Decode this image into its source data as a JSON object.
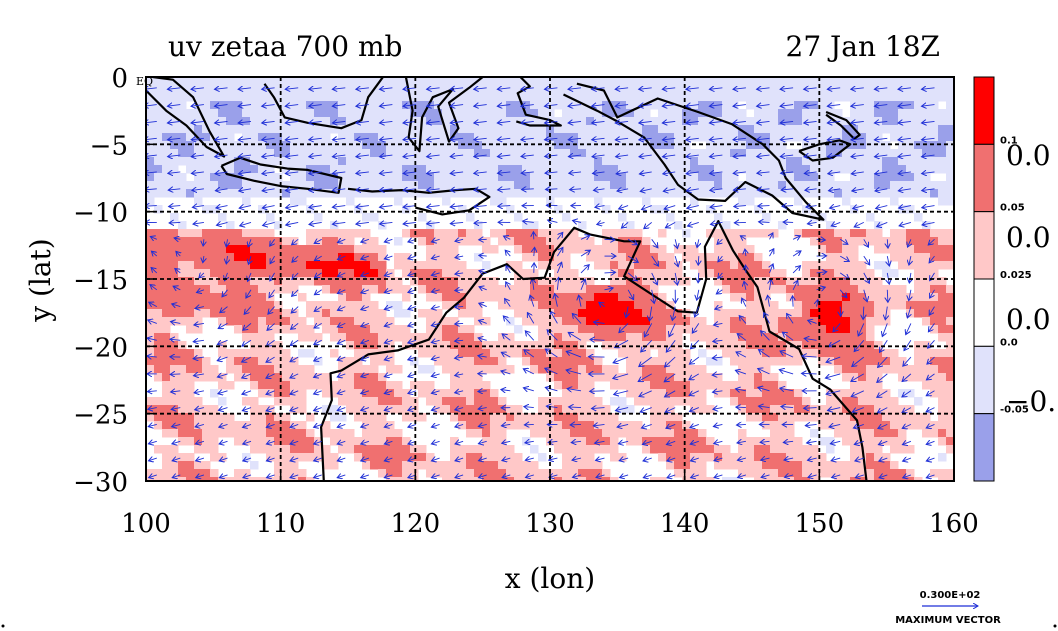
{
  "header": {
    "title": "uv zetaa 700 mb",
    "datetime": "27 Jan 18Z"
  },
  "map": {
    "x_axis": {
      "label": "x (lon)",
      "ticks": [
        100,
        110,
        120,
        130,
        140,
        150,
        160
      ],
      "tick_labels": [
        "100",
        "110",
        "120",
        "130",
        "140",
        "150",
        "160"
      ],
      "range": [
        100,
        160
      ]
    },
    "y_axis": {
      "label": "y (lat)",
      "ticks": [
        0,
        -5,
        -10,
        -15,
        -20,
        -25,
        -30
      ],
      "tick_labels": [
        "0",
        "−5",
        "−10",
        "−15",
        "−20",
        "−25",
        "−30"
      ],
      "range": [
        -30,
        0
      ]
    },
    "corner_tag": "EQ",
    "grid": "dashed",
    "field": "zetaa",
    "positive_color": "#ff0000",
    "negative_color": "#8f96e6",
    "vector_color": "#1f2fd6",
    "coast_color": "#000000",
    "cyclones": [
      {
        "lon": 134.5,
        "lat": -17.5,
        "strength": 1.0
      },
      {
        "lon": 150.5,
        "lat": -18.0,
        "strength": 0.85
      },
      {
        "lon": 104.5,
        "lat": -16.5,
        "strength": 0.3
      }
    ]
  },
  "colorbar": {
    "levels": [
      {
        "label": "0.1",
        "color": "#ff0000"
      },
      {
        "label": "0.05",
        "color": "#f07070"
      },
      {
        "label": "0.025",
        "color": "#ffc8c8"
      },
      {
        "label": "0.0",
        "color": "#ffffff"
      },
      {
        "label": "-0.05",
        "color": "#e0e2fb"
      },
      {
        "label": "",
        "color": "#9aa0ea"
      }
    ],
    "overflow_labels": [
      "0.0",
      "0.0",
      "0.0",
      "−0."
    ]
  },
  "legend": {
    "max_vector_value": "0.300E+02",
    "max_vector_label": "MAXIMUM VECTOR"
  }
}
